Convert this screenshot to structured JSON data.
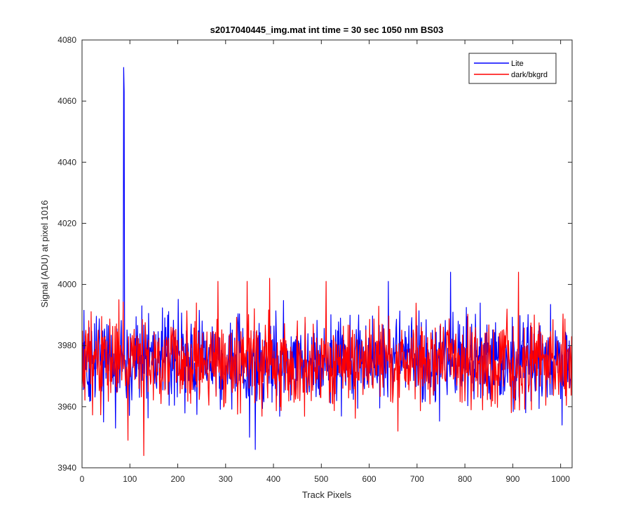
{
  "chart_data": {
    "type": "line",
    "title": "s2017040445_img.mat int time = 30 sec  1050 nm BS03",
    "xlabel": "Track Pixels",
    "ylabel": "Signal (ADU) at pixel 1016",
    "xlim": [
      0,
      1024
    ],
    "ylim": [
      3940,
      4080
    ],
    "xticks": [
      "0",
      "100",
      "200",
      "300",
      "400",
      "500",
      "600",
      "700",
      "800",
      "900",
      "1000"
    ],
    "yticks": [
      "3940",
      "3960",
      "3980",
      "4000",
      "4020",
      "4040",
      "4060",
      "4080"
    ],
    "grid": false,
    "legend_position": "top-right",
    "noise_model": {
      "num_points": 1024,
      "center": 3975,
      "spread": 7
    },
    "series": [
      {
        "name": "Lite",
        "color": "#0000ff",
        "seed": 1013,
        "notable_points": [
          {
            "x": 5,
            "y": 3966
          },
          {
            "x": 45,
            "y": 3955
          },
          {
            "x": 70,
            "y": 3953
          },
          {
            "x": 86,
            "y": 3978
          },
          {
            "x": 87,
            "y": 4071
          },
          {
            "x": 88,
            "y": 4063
          },
          {
            "x": 89,
            "y": 3975
          },
          {
            "x": 125,
            "y": 3993
          },
          {
            "x": 350,
            "y": 3950
          },
          {
            "x": 362,
            "y": 3946
          },
          {
            "x": 640,
            "y": 4001
          },
          {
            "x": 770,
            "y": 4004
          },
          {
            "x": 1003,
            "y": 3954
          }
        ]
      },
      {
        "name": "dark/bkgrd",
        "color": "#ff0000",
        "seed": 2029,
        "notable_points": [
          {
            "x": 77,
            "y": 3995
          },
          {
            "x": 96,
            "y": 3949
          },
          {
            "x": 129,
            "y": 3944
          },
          {
            "x": 284,
            "y": 4001
          },
          {
            "x": 345,
            "y": 4001
          },
          {
            "x": 392,
            "y": 4002
          },
          {
            "x": 510,
            "y": 4001
          },
          {
            "x": 660,
            "y": 3952
          },
          {
            "x": 912,
            "y": 4004
          }
        ]
      }
    ]
  }
}
